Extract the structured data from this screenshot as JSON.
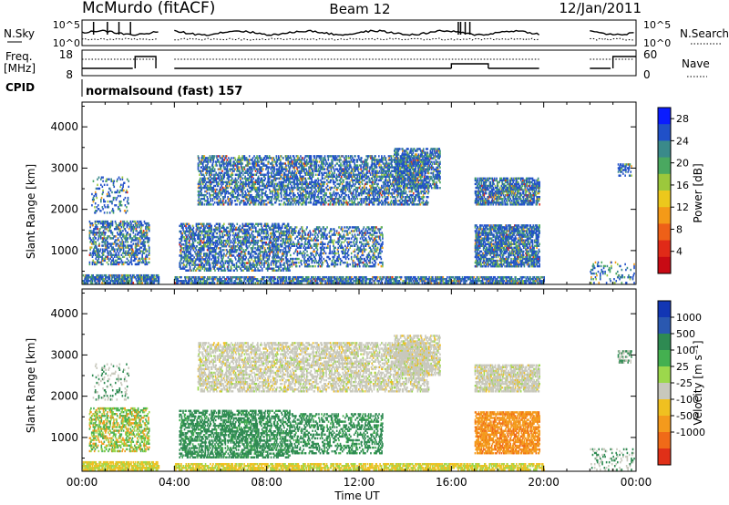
{
  "header": {
    "site": "McMurdo (fitACF)",
    "beam": "Beam 12",
    "date": "12/Jan/2011"
  },
  "summary_panels": {
    "noise": {
      "left_label": "N.Sky",
      "right_label": "N.Search",
      "left_ticks": [
        "10^5",
        "10^0"
      ],
      "right_ticks": [
        "10^5",
        "10^0"
      ]
    },
    "freq": {
      "left_label_line1": "Freq.",
      "left_label_line2": "[MHz]",
      "right_label": "Nave",
      "left_ticks": [
        "18",
        "8"
      ],
      "right_ticks": [
        "60",
        "0"
      ]
    },
    "cpid": {
      "label": "CPID",
      "value": "normalsound (fast) 157"
    }
  },
  "chart_data": [
    {
      "type": "heatmap",
      "name": "power",
      "ylabel": "Slant Range [km]",
      "ylim": [
        180,
        4600
      ],
      "yticks": [
        1000,
        2000,
        3000,
        4000
      ],
      "xlim": [
        0,
        24
      ],
      "colorbar": {
        "label": "Power [dB]",
        "ticks": [
          "4",
          "8",
          "12",
          "16",
          "20",
          "24",
          "28"
        ],
        "colors": [
          "#0a1cff",
          "#2050c8",
          "#3a8a8a",
          "#4aa860",
          "#9cc83c",
          "#ecc81c",
          "#f49a18",
          "#ee6018",
          "#e02a18",
          "#c80a14"
        ]
      }
    },
    {
      "type": "heatmap",
      "name": "velocity",
      "ylabel": "Slant Range [km]",
      "ylim": [
        180,
        4600
      ],
      "yticks": [
        1000,
        2000,
        3000,
        4000
      ],
      "xlim": [
        0,
        24
      ],
      "colorbar": {
        "label": "Velocity [m s⁻¹]",
        "ticks": [
          "1000",
          "500",
          "100",
          "25",
          "-25",
          "-100",
          "-500",
          "-1000"
        ],
        "colors": [
          "#1236b4",
          "#2a58b0",
          "#2e8a52",
          "#44b050",
          "#9cd84c",
          "#c8c8bc",
          "#f0c020",
          "#f49a1c",
          "#f06a18",
          "#e03018"
        ]
      }
    }
  ],
  "xaxis": {
    "label": "Time UT",
    "tick_labels": [
      "00:00",
      "04:00",
      "08:00",
      "12:00",
      "16:00",
      "20:00",
      "00:00"
    ]
  }
}
